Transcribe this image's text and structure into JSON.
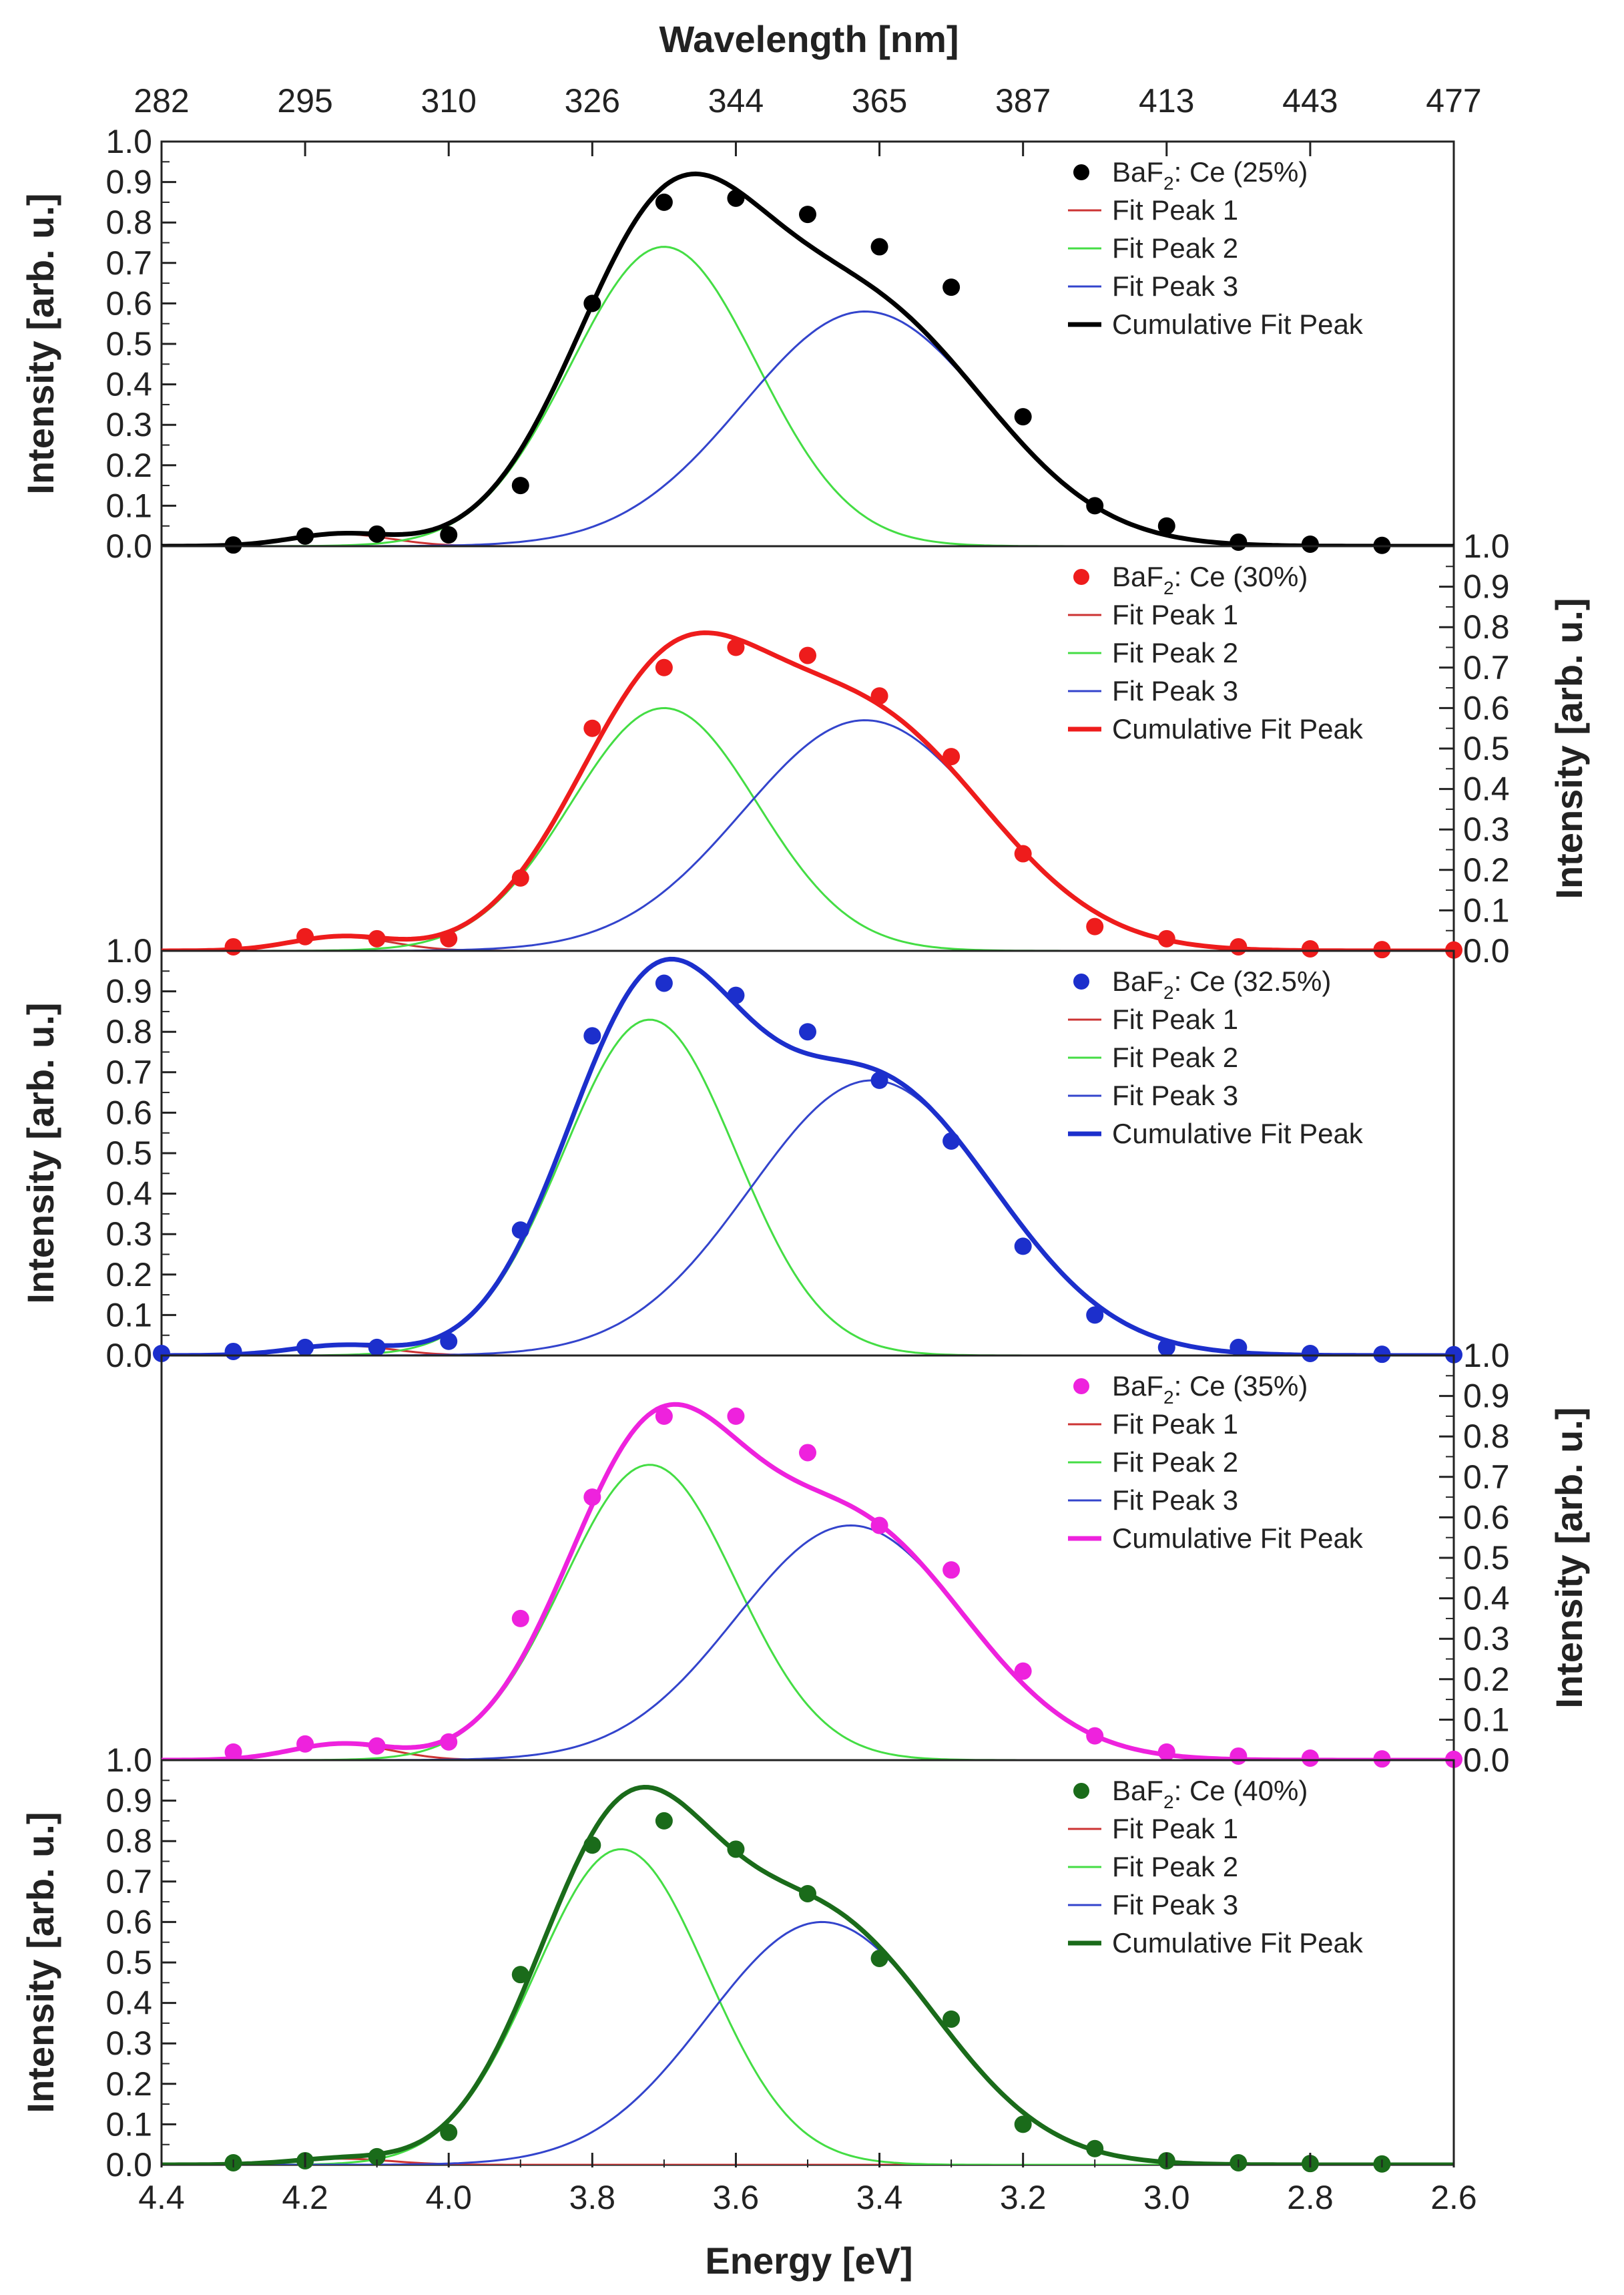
{
  "chart_data": {
    "type": "scatter",
    "title": "",
    "top_axis": {
      "label": "Wavelength [nm]",
      "tick_labels": [
        "282",
        "295",
        "310",
        "326",
        "344",
        "365",
        "387",
        "413",
        "443",
        "477"
      ],
      "tick_energies": [
        4.4,
        4.2,
        4.0,
        3.8,
        3.6,
        3.4,
        3.2,
        3.0,
        2.8,
        2.6
      ]
    },
    "xlabel": "Energy [eV]",
    "xlim": [
      4.4,
      2.6
    ],
    "x_ticks": [
      "4.4",
      "4.2",
      "4.0",
      "3.8",
      "3.6",
      "3.4",
      "3.2",
      "3.0",
      "2.8",
      "2.6"
    ],
    "x_minor_step": 0.1,
    "ylabel": "Intensity [arb. u.]",
    "ylim": [
      0,
      1.0
    ],
    "y_ticks": [
      "0.0",
      "0.1",
      "0.2",
      "0.3",
      "0.4",
      "0.5",
      "0.6",
      "0.7",
      "0.8",
      "0.9",
      "1.0"
    ],
    "panels": [
      {
        "sample": "BaF2: Ce (25%)",
        "legend_main": "BaF",
        "legend_sub": "2",
        "legend_rest": ": Ce (25%)",
        "color": "#000000",
        "y_axis_side": "left",
        "legend": [
          "Fit Peak 1",
          "Fit Peak 2",
          "Fit Peak 3",
          "Cumulative Fit Peak"
        ],
        "fit_peaks": [
          {
            "name": "Fit Peak 1",
            "color": "#cc3333",
            "center": 4.15,
            "amplitude": 0.03,
            "sigma": 0.07
          },
          {
            "name": "Fit Peak 2",
            "color": "#44dd44",
            "center": 3.7,
            "amplitude": 0.74,
            "sigma": 0.13
          },
          {
            "name": "Fit Peak 3",
            "color": "#3344cc",
            "center": 3.42,
            "amplitude": 0.58,
            "sigma": 0.17
          }
        ],
        "points": [
          [
            4.3,
            0.003
          ],
          [
            4.2,
            0.025
          ],
          [
            4.1,
            0.03
          ],
          [
            4.0,
            0.028
          ],
          [
            3.9,
            0.15
          ],
          [
            3.8,
            0.6
          ],
          [
            3.7,
            0.85
          ],
          [
            3.6,
            0.86
          ],
          [
            3.5,
            0.82
          ],
          [
            3.4,
            0.74
          ],
          [
            3.3,
            0.64
          ],
          [
            3.2,
            0.32
          ],
          [
            3.1,
            0.1
          ],
          [
            3.0,
            0.05
          ],
          [
            2.9,
            0.01
          ],
          [
            2.8,
            0.005
          ],
          [
            2.7,
            0.002
          ]
        ]
      },
      {
        "sample": "BaF2: Ce (30%)",
        "legend_main": "BaF",
        "legend_sub": "2",
        "legend_rest": ": Ce (30%)",
        "color": "#ee1c1c",
        "y_axis_side": "right",
        "legend": [
          "Fit Peak 1",
          "Fit Peak 2",
          "Fit Peak 3",
          "Cumulative Fit Peak"
        ],
        "fit_peaks": [
          {
            "name": "Fit Peak 1",
            "color": "#cc3333",
            "center": 4.15,
            "amplitude": 0.035,
            "sigma": 0.07
          },
          {
            "name": "Fit Peak 2",
            "color": "#44dd44",
            "center": 3.7,
            "amplitude": 0.6,
            "sigma": 0.13
          },
          {
            "name": "Fit Peak 3",
            "color": "#3344cc",
            "center": 3.42,
            "amplitude": 0.57,
            "sigma": 0.17
          }
        ],
        "points": [
          [
            4.3,
            0.01
          ],
          [
            4.2,
            0.035
          ],
          [
            4.1,
            0.03
          ],
          [
            4.0,
            0.03
          ],
          [
            3.9,
            0.18
          ],
          [
            3.8,
            0.55
          ],
          [
            3.7,
            0.7
          ],
          [
            3.6,
            0.75
          ],
          [
            3.5,
            0.73
          ],
          [
            3.4,
            0.63
          ],
          [
            3.3,
            0.48
          ],
          [
            3.2,
            0.24
          ],
          [
            3.1,
            0.06
          ],
          [
            3.0,
            0.03
          ],
          [
            2.9,
            0.01
          ],
          [
            2.8,
            0.005
          ],
          [
            2.7,
            0.003
          ],
          [
            2.6,
            0.002
          ]
        ]
      },
      {
        "sample": "BaF2: Ce (32.5%)",
        "legend_main": "BaF",
        "legend_sub": "2",
        "legend_rest": ": Ce (32.5%)",
        "color": "#1c2fcc",
        "y_axis_side": "left",
        "legend": [
          "Fit Peak 1",
          "Fit Peak 2",
          "Fit Peak 3",
          "Cumulative Fit Peak"
        ],
        "fit_peaks": [
          {
            "name": "Fit Peak 1",
            "color": "#cc3333",
            "center": 4.15,
            "amplitude": 0.025,
            "sigma": 0.07
          },
          {
            "name": "Fit Peak 2",
            "color": "#44dd44",
            "center": 3.72,
            "amplitude": 0.83,
            "sigma": 0.12
          },
          {
            "name": "Fit Peak 3",
            "color": "#3344cc",
            "center": 3.41,
            "amplitude": 0.68,
            "sigma": 0.17
          }
        ],
        "points": [
          [
            4.4,
            0.005
          ],
          [
            4.3,
            0.01
          ],
          [
            4.2,
            0.02
          ],
          [
            4.1,
            0.02
          ],
          [
            4.0,
            0.035
          ],
          [
            3.9,
            0.31
          ],
          [
            3.8,
            0.79
          ],
          [
            3.7,
            0.92
          ],
          [
            3.6,
            0.89
          ],
          [
            3.5,
            0.8
          ],
          [
            3.4,
            0.68
          ],
          [
            3.3,
            0.53
          ],
          [
            3.2,
            0.27
          ],
          [
            3.1,
            0.1
          ],
          [
            3.0,
            0.02
          ],
          [
            2.9,
            0.02
          ],
          [
            2.8,
            0.005
          ],
          [
            2.7,
            0.003
          ],
          [
            2.6,
            0.002
          ]
        ]
      },
      {
        "sample": "BaF2: Ce (35%)",
        "legend_main": "BaF",
        "legend_sub": "2",
        "legend_rest": ": Ce (35%)",
        "color": "#ee22dd",
        "y_axis_side": "right",
        "legend": [
          "Fit Peak 1",
          "Fit Peak 2",
          "Fit Peak 3",
          "Cumulative Fit Peak"
        ],
        "fit_peaks": [
          {
            "name": "Fit Peak 1",
            "color": "#cc3333",
            "center": 4.15,
            "amplitude": 0.04,
            "sigma": 0.07
          },
          {
            "name": "Fit Peak 2",
            "color": "#44dd44",
            "center": 3.72,
            "amplitude": 0.73,
            "sigma": 0.12
          },
          {
            "name": "Fit Peak 3",
            "color": "#3344cc",
            "center": 3.44,
            "amplitude": 0.58,
            "sigma": 0.16
          }
        ],
        "points": [
          [
            4.3,
            0.02
          ],
          [
            4.2,
            0.04
          ],
          [
            4.1,
            0.035
          ],
          [
            4.0,
            0.045
          ],
          [
            3.9,
            0.35
          ],
          [
            3.8,
            0.65
          ],
          [
            3.7,
            0.85
          ],
          [
            3.6,
            0.85
          ],
          [
            3.5,
            0.76
          ],
          [
            3.4,
            0.58
          ],
          [
            3.3,
            0.47
          ],
          [
            3.2,
            0.22
          ],
          [
            3.1,
            0.06
          ],
          [
            3.0,
            0.02
          ],
          [
            2.9,
            0.01
          ],
          [
            2.8,
            0.005
          ],
          [
            2.7,
            0.003
          ],
          [
            2.6,
            0.002
          ]
        ]
      },
      {
        "sample": "BaF2: Ce (40%)",
        "legend_main": "BaF",
        "legend_sub": "2",
        "legend_rest": ": Ce (40%)",
        "color": "#1a6b1a",
        "y_axis_side": "left",
        "legend": [
          "Fit Peak 1",
          "Fit Peak 2",
          "Fit Peak 3",
          "Cumulative Fit Peak"
        ],
        "fit_peaks": [
          {
            "name": "Fit Peak 1",
            "color": "#cc3333",
            "center": 4.15,
            "amplitude": 0.015,
            "sigma": 0.07
          },
          {
            "name": "Fit Peak 2",
            "color": "#44dd44",
            "center": 3.76,
            "amplitude": 0.78,
            "sigma": 0.12
          },
          {
            "name": "Fit Peak 3",
            "color": "#3344cc",
            "center": 3.48,
            "amplitude": 0.6,
            "sigma": 0.16
          }
        ],
        "points": [
          [
            4.3,
            0.005
          ],
          [
            4.2,
            0.01
          ],
          [
            4.1,
            0.02
          ],
          [
            4.0,
            0.08
          ],
          [
            3.9,
            0.47
          ],
          [
            3.8,
            0.79
          ],
          [
            3.7,
            0.85
          ],
          [
            3.6,
            0.78
          ],
          [
            3.5,
            0.67
          ],
          [
            3.4,
            0.51
          ],
          [
            3.3,
            0.36
          ],
          [
            3.2,
            0.1
          ],
          [
            3.1,
            0.04
          ],
          [
            3.0,
            0.01
          ],
          [
            2.9,
            0.005
          ],
          [
            2.8,
            0.003
          ],
          [
            2.7,
            0.002
          ]
        ]
      }
    ]
  }
}
